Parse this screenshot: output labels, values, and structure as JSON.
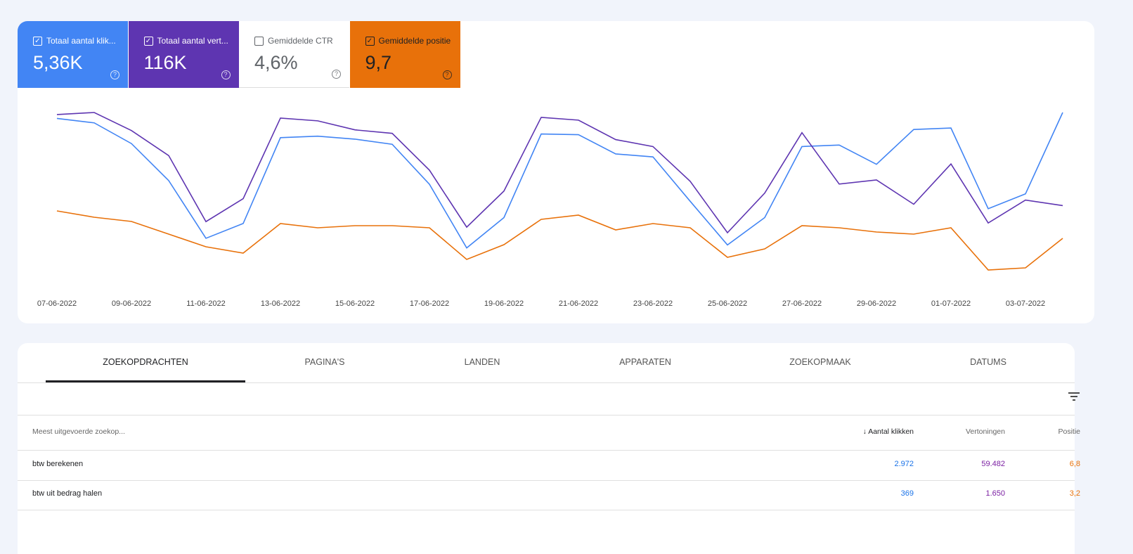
{
  "tiles": [
    {
      "label": "Totaal aantal klik...",
      "value": "5,36K",
      "checked": true,
      "color": "#4285f4"
    },
    {
      "label": "Totaal aantal vert...",
      "value": "116K",
      "checked": true,
      "color": "#5e35b1"
    },
    {
      "label": "Gemiddelde CTR",
      "value": "4,6%",
      "checked": false,
      "color": "#ffffff"
    },
    {
      "label": "Gemiddelde positie",
      "value": "9,7",
      "checked": true,
      "color": "#e8710a"
    }
  ],
  "chart_data": {
    "type": "line",
    "categories": [
      "07-06-2022",
      null,
      "09-06-2022",
      null,
      "11-06-2022",
      null,
      "13-06-2022",
      null,
      "15-06-2022",
      null,
      "17-06-2022",
      null,
      "19-06-2022",
      null,
      "21-06-2022",
      null,
      "23-06-2022",
      null,
      "25-06-2022",
      null,
      "27-06-2022",
      null,
      "29-06-2022",
      null,
      "01-07-2022",
      null,
      "03-07-2022",
      null
    ],
    "series": [
      {
        "name": "Totaal aantal klik...",
        "color": "#4285f4",
        "values": [
          239,
          233,
          205,
          155,
          77,
          97,
          213,
          215,
          211,
          204,
          150,
          64,
          105,
          218,
          217,
          191,
          187,
          127,
          68,
          105,
          201,
          203,
          177,
          224,
          226,
          117,
          137,
          247
        ]
      },
      {
        "name": "Totaal aantal vert...",
        "color": "#5e35b1",
        "values": [
          5200,
          5260,
          4740,
          4020,
          2120,
          2780,
          5100,
          5020,
          4760,
          4660,
          3600,
          1960,
          3000,
          5120,
          5040,
          4480,
          4280,
          3280,
          1800,
          2940,
          4680,
          3200,
          3320,
          2620,
          3780,
          2080,
          2740,
          2580
        ]
      },
      {
        "name": "Gemiddelde positie",
        "color": "#e8710a",
        "inverted": true,
        "values": [
          9.0,
          9.3,
          9.5,
          10.1,
          10.7,
          11.0,
          9.6,
          9.8,
          9.7,
          9.7,
          9.8,
          11.3,
          10.6,
          9.4,
          9.2,
          9.9,
          9.6,
          9.8,
          11.2,
          10.8,
          9.7,
          9.8,
          10.0,
          10.1,
          9.8,
          11.8,
          11.7,
          10.3
        ]
      }
    ]
  },
  "tabs": [
    "ZOEKOPDRACHTEN",
    "PAGINA'S",
    "LANDEN",
    "APPARATEN",
    "ZOEKOPMAAK",
    "DATUMS"
  ],
  "table": {
    "header": [
      "Meest uitgevoerde zoekop...",
      "Aantal klikken",
      "Vertoningen",
      "Positie"
    ],
    "rows": [
      [
        "btw berekenen",
        "2.972",
        "59.482",
        "6,8"
      ],
      [
        "btw uit bedrag halen",
        "369",
        "1.650",
        "3,2"
      ]
    ]
  }
}
